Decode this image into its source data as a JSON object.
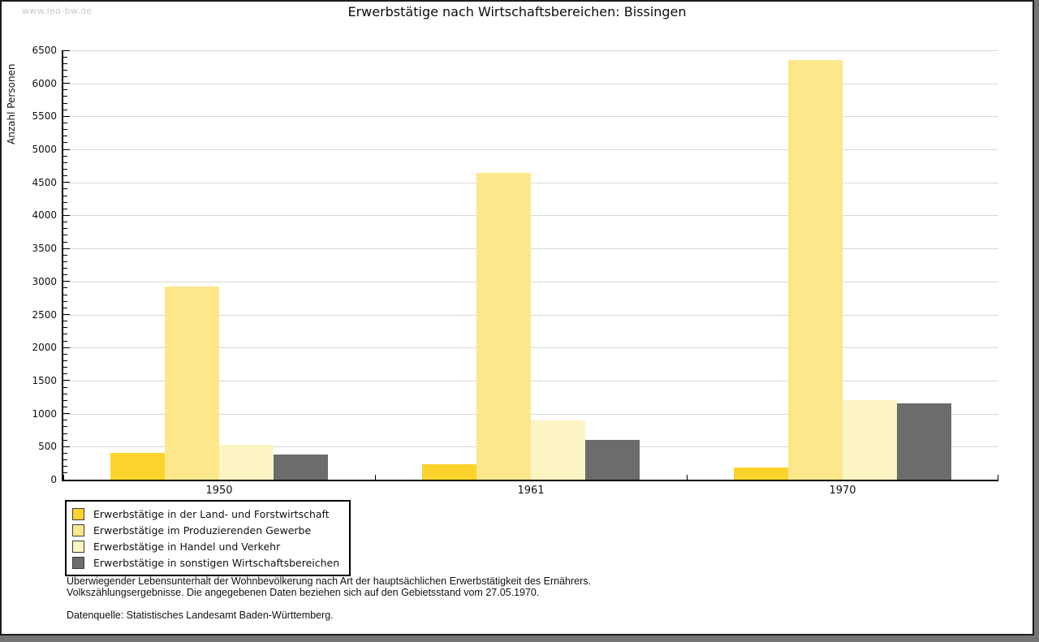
{
  "watermark": "www.leo-bw.de",
  "chart_data": {
    "type": "bar",
    "title": "Erwerbstätige nach Wirtschaftsbereichen: Bissingen",
    "ylabel": "Anzahl Personen",
    "xlabel": "",
    "categories": [
      "1950",
      "1961",
      "1970"
    ],
    "series": [
      {
        "name": "Erwerbstätige in der Land- und Forstwirtschaft",
        "color": "#FCD32D",
        "values": [
          400,
          230,
          190
        ]
      },
      {
        "name": "Erwerbstätige im Produzierenden Gewerbe",
        "color": "#FCE88B",
        "values": [
          2920,
          4650,
          6350
        ]
      },
      {
        "name": "Erwerbstätige in Handel und Verkehr",
        "color": "#FCF4C5",
        "values": [
          530,
          900,
          1200
        ]
      },
      {
        "name": "Erwerbstätige in sonstigen Wirtschaftsbereichen",
        "color": "#6C6C6C",
        "values": [
          375,
          600,
          1150
        ]
      }
    ],
    "ylim": [
      0,
      6500
    ],
    "ytick_step": 500,
    "minor_tick_step": 100,
    "grid": true,
    "legend_position": "bottom-left",
    "grid_color": "#d9d9d9",
    "axis_color": "#000000"
  },
  "footer": {
    "note_line1": "Überwiegender Lebensunterhalt der Wohnbevölkerung nach Art der hauptsächlichen Erwerbstätigkeit des Ernährers.",
    "note_line2": "Volkszählungsergebnisse. Die angegebenen Daten beziehen sich auf den Gebietsstand vom 27.05.1970.",
    "source": "Datenquelle: Statistisches Landesamt Baden-Württemberg."
  }
}
